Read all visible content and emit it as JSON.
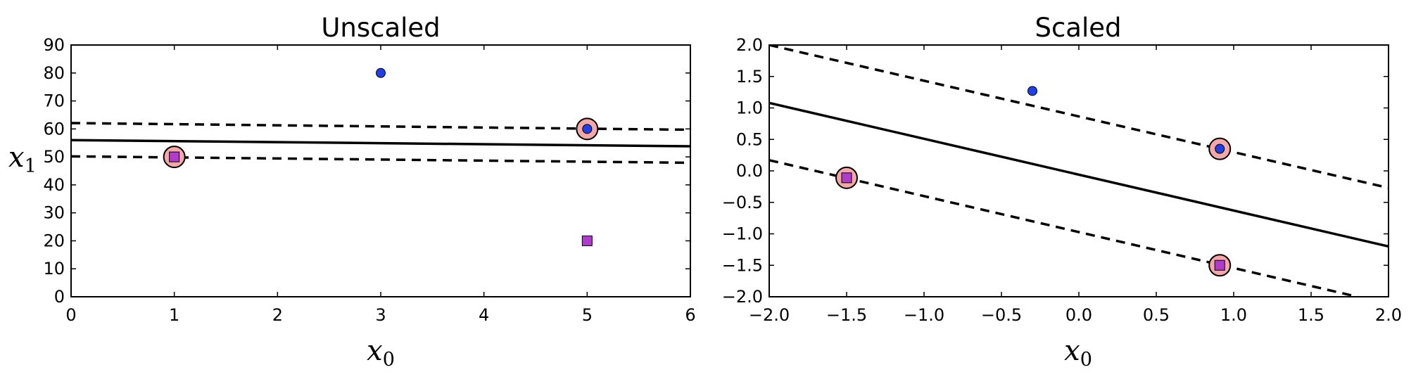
{
  "chart_data": [
    {
      "type": "scatter",
      "title": "Unscaled",
      "xlabel": "x",
      "xlabel_sub": "0",
      "ylabel": "x",
      "ylabel_sub": "1",
      "xlim": [
        0,
        6
      ],
      "ylim": [
        0,
        90
      ],
      "xticks": [
        0,
        1,
        2,
        3,
        4,
        5,
        6
      ],
      "yticks": [
        0,
        10,
        20,
        30,
        40,
        50,
        60,
        70,
        80,
        90
      ],
      "xtick_labels": [
        "0",
        "1",
        "2",
        "3",
        "4",
        "5",
        "6"
      ],
      "ytick_labels": [
        "0",
        "10",
        "20",
        "30",
        "40",
        "50",
        "60",
        "70",
        "80",
        "90"
      ],
      "grid": false,
      "series": [
        {
          "marker": "circle",
          "color": "#1f3fe8",
          "points": [
            [
              3,
              80
            ],
            [
              5,
              60
            ]
          ]
        },
        {
          "marker": "square",
          "color": "#b23bcf",
          "points": [
            [
              1,
              50
            ],
            [
              5,
              20
            ]
          ]
        }
      ],
      "support_vectors": {
        "color": "#f4a7a7",
        "points": [
          [
            1,
            50
          ],
          [
            5,
            60
          ]
        ]
      },
      "decision_boundary": [
        [
          0,
          56
        ],
        [
          6,
          53.8
        ]
      ],
      "margins": [
        [
          [
            0,
            62.1
          ],
          [
            6,
            59.7
          ]
        ],
        [
          [
            0,
            50.2
          ],
          [
            6,
            47.9
          ]
        ]
      ]
    },
    {
      "type": "scatter",
      "title": "Scaled",
      "xlabel": "x",
      "xlabel_sub": "0",
      "xlim": [
        -2.0,
        2.0
      ],
      "ylim": [
        -2.0,
        2.0
      ],
      "xticks": [
        -2.0,
        -1.5,
        -1.0,
        -0.5,
        0.0,
        0.5,
        1.0,
        1.5,
        2.0
      ],
      "yticks": [
        -2.0,
        -1.5,
        -1.0,
        -0.5,
        0.0,
        0.5,
        1.0,
        1.5,
        2.0
      ],
      "xtick_labels": [
        "−2.0",
        "−1.5",
        "−1.0",
        "−0.5",
        "0.0",
        "0.5",
        "1.0",
        "1.5",
        "2.0"
      ],
      "ytick_labels": [
        "−2.0",
        "−1.5",
        "−1.0",
        "−0.5",
        "0.0",
        "0.5",
        "1.0",
        "1.5",
        "2.0"
      ],
      "grid": false,
      "series": [
        {
          "marker": "circle",
          "color": "#1f3fe8",
          "points": [
            [
              -0.3,
              1.27
            ],
            [
              0.91,
              0.35
            ]
          ]
        },
        {
          "marker": "square",
          "color": "#b23bcf",
          "points": [
            [
              -1.5,
              -0.11
            ],
            [
              0.91,
              -1.5
            ]
          ]
        }
      ],
      "support_vectors": {
        "color": "#f4a7a7",
        "points": [
          [
            -1.5,
            -0.11
          ],
          [
            0.91,
            0.35
          ],
          [
            0.91,
            -1.5
          ]
        ]
      },
      "decision_boundary": [
        [
          -2.0,
          1.08
        ],
        [
          2.0,
          -1.2
        ]
      ],
      "margins": [
        [
          [
            -2.0,
            2.0
          ],
          [
            2.0,
            -0.27
          ]
        ],
        [
          [
            -2.0,
            0.17
          ],
          [
            1.8,
            -2.0
          ]
        ]
      ]
    }
  ]
}
